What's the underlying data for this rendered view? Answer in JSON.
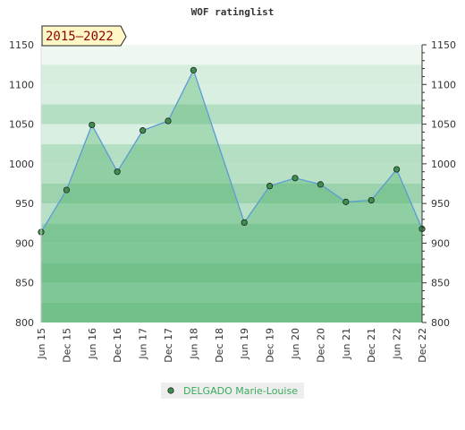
{
  "chart_data": {
    "type": "area",
    "title": "WOF ratinglist",
    "period_label": "2015–2022",
    "categories": [
      "Jun 15",
      "Dec 15",
      "Jun 16",
      "Dec 16",
      "Jun 17",
      "Dec 17",
      "Jun 18",
      "Dec 18",
      "Jun 19",
      "Dec 19",
      "Jun 20",
      "Dec 20",
      "Jun 21",
      "Dec 21",
      "Jun 22",
      "Dec 22"
    ],
    "series": [
      {
        "name": "DELGADO Marie-Louise",
        "values": [
          914,
          967,
          1049,
          990,
          1042,
          1054,
          1118,
          null,
          926,
          972,
          982,
          974,
          952,
          954,
          993,
          918
        ]
      }
    ],
    "ylim": [
      800,
      1150
    ],
    "yticks": [
      800,
      850,
      900,
      950,
      1000,
      1050,
      1100,
      1150
    ],
    "grid": true,
    "right_axis": true,
    "legend_position": "bottom-center",
    "colors": {
      "line": "#5b9bd5",
      "fill": "#3aab5e",
      "marker_fill": "#3d8f4d",
      "legend_text": "#3aab5e",
      "badge_fill": "#fff8c6"
    }
  }
}
